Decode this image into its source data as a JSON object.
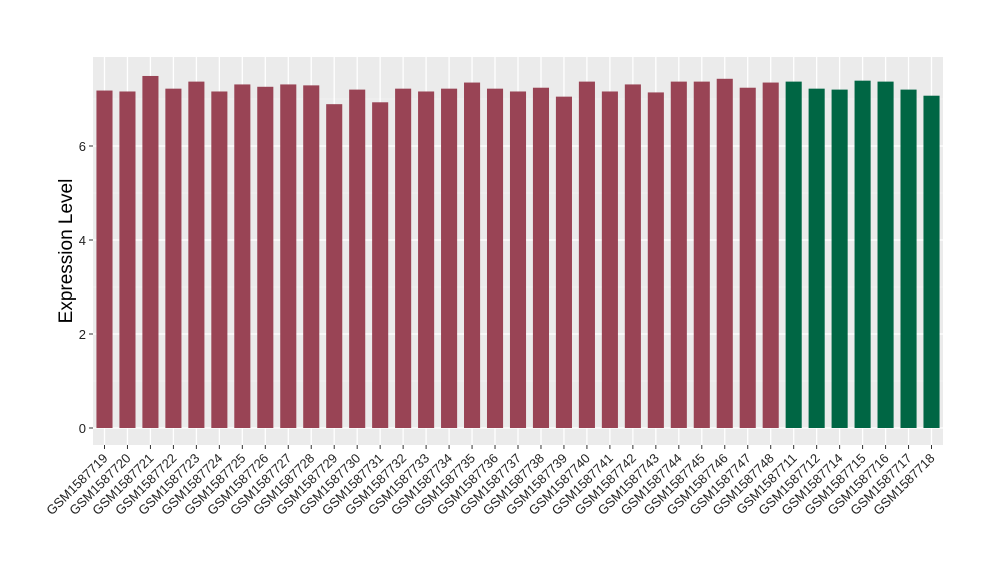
{
  "chart_data": {
    "type": "bar",
    "title": "",
    "xlabel": "",
    "ylabel": "Expression Level",
    "ylim": [
      0,
      7.7
    ],
    "yticks": [
      0,
      2,
      4,
      6
    ],
    "grid": true,
    "legend": "none",
    "categories": [
      "GSM1587719",
      "GSM1587720",
      "GSM1587721",
      "GSM1587722",
      "GSM1587723",
      "GSM1587724",
      "GSM1587725",
      "GSM1587726",
      "GSM1587727",
      "GSM1587728",
      "GSM1587729",
      "GSM1587730",
      "GSM1587731",
      "GSM1587732",
      "GSM1587733",
      "GSM1587734",
      "GSM1587735",
      "GSM1587736",
      "GSM1587737",
      "GSM1587738",
      "GSM1587739",
      "GSM1587740",
      "GSM1587741",
      "GSM1587742",
      "GSM1587743",
      "GSM1587744",
      "GSM1587745",
      "GSM1587746",
      "GSM1587747",
      "GSM1587748",
      "GSM1587711",
      "GSM1587712",
      "GSM1587714",
      "GSM1587715",
      "GSM1587716",
      "GSM1587717",
      "GSM1587718"
    ],
    "values": [
      7.18,
      7.16,
      7.49,
      7.22,
      7.37,
      7.16,
      7.31,
      7.26,
      7.31,
      7.29,
      6.89,
      7.2,
      6.93,
      7.22,
      7.16,
      7.22,
      7.35,
      7.22,
      7.16,
      7.24,
      7.05,
      7.37,
      7.16,
      7.31,
      7.14,
      7.37,
      7.37,
      7.43,
      7.24,
      7.35,
      7.37,
      7.22,
      7.2,
      7.39,
      7.37,
      7.2,
      7.07
    ],
    "groups": [
      "a",
      "a",
      "a",
      "a",
      "a",
      "a",
      "a",
      "a",
      "a",
      "a",
      "a",
      "a",
      "a",
      "a",
      "a",
      "a",
      "a",
      "a",
      "a",
      "a",
      "a",
      "a",
      "a",
      "a",
      "a",
      "a",
      "a",
      "a",
      "a",
      "a",
      "b",
      "b",
      "b",
      "b",
      "b",
      "b",
      "b"
    ],
    "colors": {
      "a": "#994455",
      "b": "#006644"
    },
    "style": {
      "panel_bg": "#ebebeb",
      "grid_major": "#ffffff",
      "grid_minor": "#f4f4f4",
      "tick_color": "#333333"
    }
  }
}
